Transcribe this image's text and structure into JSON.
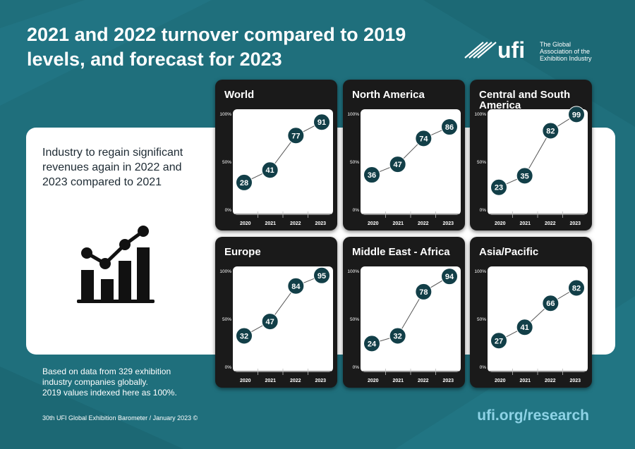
{
  "header": {
    "title": "2021 and 2022 turnover compared to 2019 levels, and forecast for 2023",
    "logo_text": "ufi",
    "logo_tagline": [
      "The Global",
      "Association of the",
      "Exhibition Industry"
    ]
  },
  "intro": {
    "text": "Industry to regain significant revenues again in 2022 and 2023 compared to 2021"
  },
  "note": {
    "lines": [
      "Based on data from 329 exhibition",
      "industry companies globally.",
      "2019 values indexed here as 100%."
    ]
  },
  "footer": {
    "source": "30th UFI Global Exhibition Barometer / January 2023 ©",
    "url": "ufi.org/research"
  },
  "colors": {
    "background": "#1f6f7c",
    "panel": "#1a1a1a",
    "marker": "#123f48",
    "url": "#8ed3e6"
  },
  "chart_data": [
    {
      "type": "line",
      "title": "World",
      "categories": [
        "2020",
        "2021",
        "2022",
        "2023"
      ],
      "values": [
        28,
        41,
        77,
        91
      ],
      "yticks": [
        "0%",
        "50%",
        "100%"
      ],
      "ylim": [
        0,
        100
      ],
      "grid": false
    },
    {
      "type": "line",
      "title": "North America",
      "categories": [
        "2020",
        "2021",
        "2022",
        "2023"
      ],
      "values": [
        36,
        47,
        74,
        86
      ],
      "yticks": [
        "0%",
        "50%",
        "100%"
      ],
      "ylim": [
        0,
        100
      ],
      "grid": false
    },
    {
      "type": "line",
      "title": "Central and South America",
      "categories": [
        "2020",
        "2021",
        "2022",
        "2023"
      ],
      "values": [
        23,
        35,
        82,
        99
      ],
      "yticks": [
        "0%",
        "50%",
        "100%"
      ],
      "ylim": [
        0,
        100
      ],
      "grid": false
    },
    {
      "type": "line",
      "title": "Europe",
      "categories": [
        "2020",
        "2021",
        "2022",
        "2023"
      ],
      "values": [
        32,
        47,
        84,
        95
      ],
      "yticks": [
        "0%",
        "50%",
        "100%"
      ],
      "ylim": [
        0,
        100
      ],
      "grid": false
    },
    {
      "type": "line",
      "title": "Middle East - Africa",
      "categories": [
        "2020",
        "2021",
        "2022",
        "2023"
      ],
      "values": [
        24,
        32,
        78,
        94
      ],
      "yticks": [
        "0%",
        "50%",
        "100%"
      ],
      "ylim": [
        0,
        100
      ],
      "grid": false
    },
    {
      "type": "line",
      "title": "Asia/Pacific",
      "categories": [
        "2020",
        "2021",
        "2022",
        "2023"
      ],
      "values": [
        27,
        41,
        66,
        82
      ],
      "yticks": [
        "0%",
        "50%",
        "100%"
      ],
      "ylim": [
        0,
        100
      ],
      "grid": false
    }
  ]
}
